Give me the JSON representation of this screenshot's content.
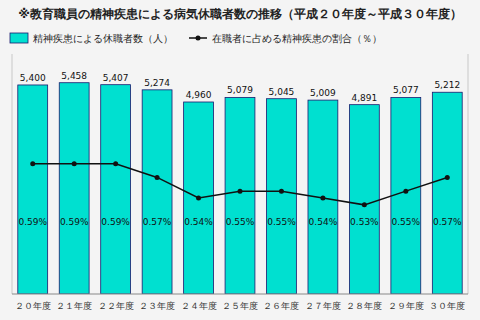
{
  "chart_data": {
    "type": "bar",
    "title": "※教育職員の精神疾患による病気休職者数の推移（平成２０年度～平成３０年度）",
    "categories": [
      "２０年度",
      "２１年度",
      "２２年度",
      "２３年度",
      "２４年度",
      "２５年度",
      "２６年度",
      "２７年度",
      "２８年度",
      "２９年度",
      "３０年度"
    ],
    "series": [
      {
        "name": "精神疾患による休職者数（人）",
        "type": "bar",
        "color": "#00E0D0",
        "values": [
          5400,
          5458,
          5407,
          5274,
          4960,
          5079,
          5045,
          5009,
          4891,
          5077,
          5212
        ],
        "value_labels": [
          "5,400",
          "5,458",
          "5,407",
          "5,274",
          "4,960",
          "5,079",
          "5,045",
          "5,009",
          "4,891",
          "5,077",
          "5,212"
        ]
      },
      {
        "name": "在職者に占める精神疾患の割合（％）",
        "type": "line",
        "axis": "y2",
        "color": "#111111",
        "marker": "circle",
        "values": [
          0.59,
          0.59,
          0.59,
          0.57,
          0.54,
          0.55,
          0.55,
          0.54,
          0.53,
          0.55,
          0.57
        ],
        "value_labels": [
          "0.59%",
          "0.59%",
          "0.59%",
          "0.57%",
          "0.54%",
          "0.55%",
          "0.55%",
          "0.54%",
          "0.53%",
          "0.55%",
          "0.57%"
        ]
      }
    ],
    "ylim": [
      0,
      6200
    ],
    "y2lim": [
      0.4,
      0.75
    ],
    "data_labels": true,
    "tick_labels": "x",
    "legend": "top left"
  }
}
